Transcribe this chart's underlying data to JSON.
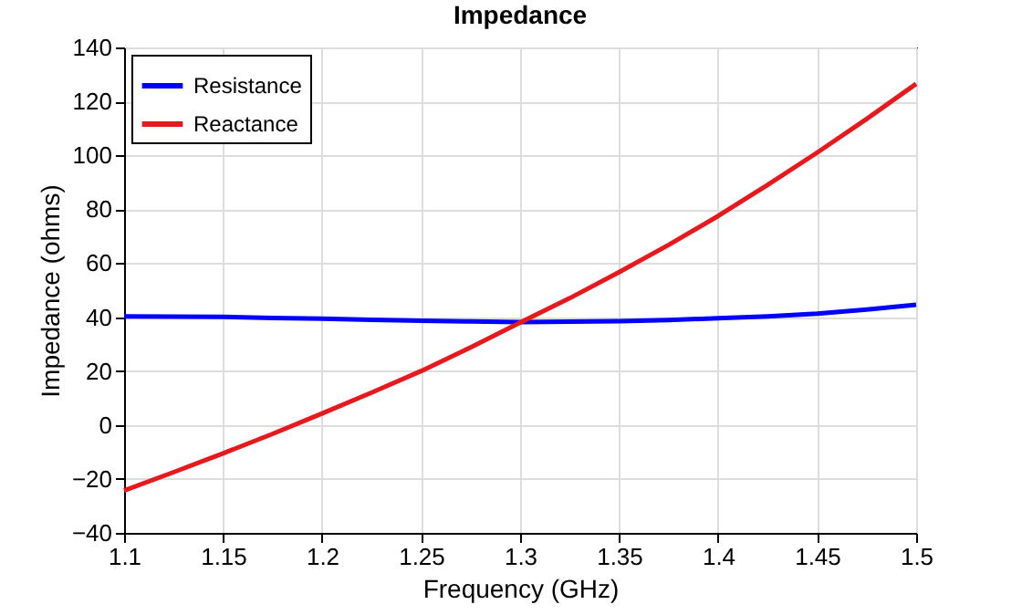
{
  "chart_data": {
    "type": "line",
    "title": "Impedance",
    "xlabel": "Frequency (GHz)",
    "ylabel": "Impedance (ohms)",
    "x": [
      1.1,
      1.125,
      1.15,
      1.175,
      1.2,
      1.225,
      1.25,
      1.275,
      1.3,
      1.325,
      1.35,
      1.375,
      1.4,
      1.425,
      1.45,
      1.475,
      1.5
    ],
    "series": [
      {
        "name": "Resistance",
        "color": "#0000ff",
        "values": [
          40.3,
          40.2,
          40.1,
          39.7,
          39.4,
          39.0,
          38.7,
          38.4,
          38.2,
          38.3,
          38.5,
          38.9,
          39.6,
          40.3,
          41.3,
          42.8,
          44.6
        ]
      },
      {
        "name": "Reactance",
        "color": "#e8191c",
        "values": [
          -24.3,
          -17.5,
          -10.5,
          -3.3,
          4.3,
          12,
          20,
          28.8,
          38,
          47,
          56.7,
          66.8,
          77.5,
          89,
          101,
          113.5,
          126.5
        ]
      }
    ],
    "xlim": [
      1.1,
      1.5
    ],
    "xticks": [
      1.1,
      1.15,
      1.2,
      1.25,
      1.3,
      1.35,
      1.4,
      1.45,
      1.5
    ],
    "ylim": [
      -40,
      140
    ],
    "yticks": [
      -40,
      -20,
      0,
      20,
      40,
      60,
      80,
      100,
      120,
      140
    ],
    "grid": true,
    "legend": "top left",
    "marker": "none",
    "line_style": "solid"
  }
}
